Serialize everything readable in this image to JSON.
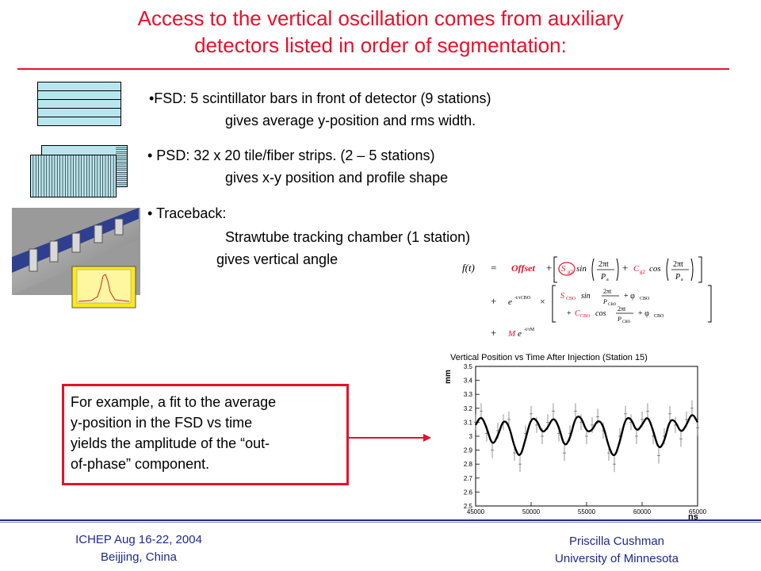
{
  "title": {
    "line1": "Access to the vertical oscillation comes from auxiliary",
    "line2": "detectors listed in order of segmentation:"
  },
  "bullets": {
    "fsd": {
      "main": "•FSD: 5 scintillator bars in front of detector (9 stations)",
      "sub": "gives average y-position and rms width."
    },
    "psd": {
      "main": "• PSD: 32 x 20 tile/fiber strips.  (2 – 5 stations)",
      "sub": "gives x-y position and profile shape"
    },
    "traceback": {
      "main": "• Traceback:",
      "sub1": "Strawtube tracking chamber (1 station)",
      "sub2": "gives vertical angle"
    }
  },
  "callout": {
    "lines": [
      "For example, a fit to the average",
      "y-position in the FSD vs time",
      "yields the amplitude of the “out-",
      "of-phase” component."
    ]
  },
  "formula": {
    "lhs": "f(t)",
    "eq": "=",
    "offset": "Offset",
    "sg2": "S",
    "sg2_sub": "g2",
    "sin": "sin",
    "cos": "cos",
    "cg2": "C",
    "cg2_sub": "g2",
    "two_pi_t": "2πt",
    "pa": "P",
    "pa_sub": "a",
    "plus": "+",
    "times": "×",
    "e": "e",
    "scbo": "S",
    "scbo_sub": "CBO",
    "ccbo": "C",
    "ccbo_sub": "CBO",
    "pcbo": "P",
    "pcbo_sub": "CBO",
    "phi": "+ φ",
    "phi_sub": "CBO",
    "tau_exp": "-t/τCBO",
    "m": "M",
    "tau_m_exp": "-t/τM"
  },
  "plot": {
    "title": "Vertical Position vs Time After Injection (Station 15)",
    "ylabel": "mm",
    "xunit": "ns"
  },
  "footer": {
    "left1": "ICHEP   Aug 16-22, 2004",
    "left2": "Beijjing, China",
    "right1": "Priscilla Cushman",
    "right2": "University of Minnesota"
  },
  "colors": {
    "accent": "#e8102a",
    "footer": "#1f2a8c",
    "fsd_fill": "#b9e6ee"
  },
  "chart_data": {
    "type": "line",
    "title": "Vertical Position vs Time After Injection (Station 15)",
    "xlabel": "ns",
    "ylabel": "mm",
    "xlim": [
      45000,
      65000
    ],
    "ylim": [
      2.5,
      3.5
    ],
    "x_ticks": [
      45000,
      50000,
      55000,
      60000,
      65000
    ],
    "y_ticks": [
      2.5,
      2.6,
      2.7,
      2.8,
      2.9,
      3.0,
      3.1,
      3.2,
      3.3,
      3.4,
      3.5
    ],
    "y_tick_labels": [
      "2.5",
      "2.6",
      "2.7",
      "2.8",
      "2.9",
      "3",
      "3.1",
      "3.2",
      "3.3",
      "3.4",
      "3.5"
    ],
    "series": [
      {
        "kind": "fit",
        "x": [
          45000,
          45500,
          46000,
          46500,
          47000,
          47500,
          48000,
          48500,
          49000,
          49500,
          50000,
          50500,
          51000,
          51500,
          52000,
          52500,
          53000,
          53500,
          54000,
          54500,
          55000,
          55500,
          56000,
          56500,
          57000,
          57500,
          58000,
          58500,
          59000,
          59500,
          60000,
          60500,
          61000,
          61500,
          62000,
          62500,
          63000,
          63500,
          64000,
          64500,
          65000
        ],
        "y": [
          3.08,
          3.15,
          3.06,
          2.93,
          3.0,
          3.12,
          3.08,
          2.92,
          2.84,
          2.98,
          3.13,
          3.12,
          3.02,
          3.06,
          3.14,
          3.07,
          2.92,
          2.98,
          3.14,
          3.14,
          3.03,
          3.04,
          3.12,
          3.08,
          2.92,
          2.84,
          2.96,
          3.13,
          3.13,
          3.03,
          3.08,
          3.15,
          3.04,
          2.9,
          2.96,
          3.12,
          3.11,
          3.02,
          3.08,
          3.17,
          3.1
        ]
      },
      {
        "kind": "data",
        "x": [
          45000,
          45500,
          46000,
          46500,
          47000,
          47500,
          48000,
          48500,
          49000,
          49500,
          50000,
          50500,
          51000,
          51500,
          52000,
          52500,
          53000,
          53500,
          54000,
          54500,
          55000,
          55500,
          56000,
          56500,
          57000,
          57500,
          58000,
          58500,
          59000,
          59500,
          60000,
          60500,
          61000,
          61500,
          62000,
          62500,
          63000,
          63500,
          64000,
          64500,
          65000
        ],
        "y": [
          3.1,
          3.18,
          3.02,
          2.9,
          3.04,
          3.1,
          3.12,
          2.88,
          2.8,
          3.02,
          3.16,
          3.08,
          3.0,
          3.1,
          3.18,
          3.02,
          2.88,
          3.02,
          3.18,
          3.1,
          3.0,
          3.08,
          3.14,
          3.04,
          2.88,
          2.8,
          3.0,
          3.16,
          3.1,
          3.0,
          3.12,
          3.18,
          3.0,
          2.86,
          3.0,
          3.16,
          3.08,
          2.98,
          3.12,
          3.2,
          3.06
        ]
      }
    ]
  }
}
